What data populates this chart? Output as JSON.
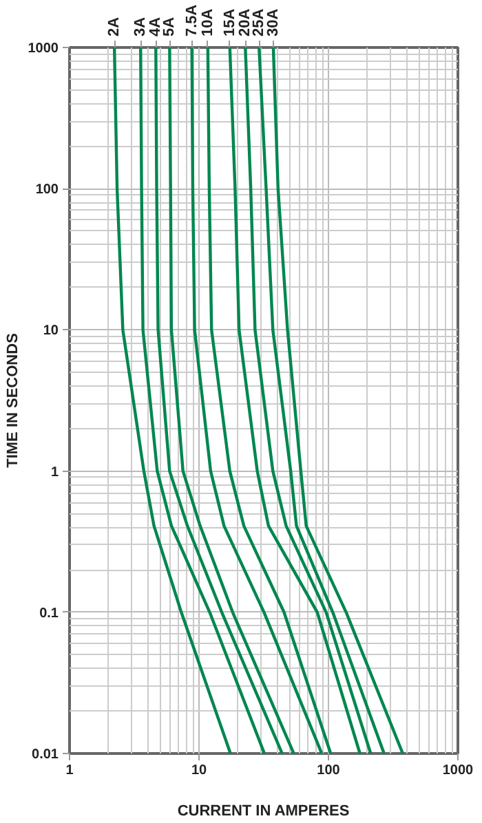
{
  "chart_data": {
    "type": "line",
    "xlabel": "CURRENT IN AMPERES",
    "ylabel": "TIME IN SECONDS",
    "log": "xy",
    "grid": true,
    "xlim": [
      1,
      1000
    ],
    "ylim": [
      0.01,
      1000
    ],
    "xticks": [
      1,
      10,
      100,
      1000
    ],
    "yticks": [
      0.01,
      0.1,
      1,
      10,
      100,
      1000
    ],
    "series": [
      {
        "name": "2A",
        "color": "#00874f",
        "x": [
          2.22,
          2.33,
          2.58,
          3.75,
          4.49,
          7.3,
          17.5
        ],
        "values": [
          1000,
          100,
          10,
          1,
          0.41,
          0.1,
          0.01
        ]
      },
      {
        "name": "3A",
        "color": "#00874f",
        "x": [
          3.54,
          3.6,
          3.69,
          4.76,
          6.12,
          12.1,
          32.0
        ],
        "values": [
          1000,
          100,
          10,
          1,
          0.41,
          0.1,
          0.01
        ]
      },
      {
        "name": "4A",
        "color": "#00874f",
        "x": [
          4.64,
          4.71,
          4.83,
          5.93,
          8.13,
          15.0,
          43.9
        ],
        "values": [
          1000,
          100,
          10,
          1,
          0.41,
          0.1,
          0.01
        ]
      },
      {
        "name": "5A",
        "color": "#00874f",
        "x": [
          5.93,
          6.03,
          6.12,
          7.52,
          10.2,
          18.2,
          54.0
        ],
        "values": [
          1000,
          100,
          10,
          1,
          0.41,
          0.1,
          0.01
        ]
      },
      {
        "name": "7.5A",
        "color": "#00874f",
        "x": [
          8.81,
          8.95,
          9.25,
          12.3,
          15.6,
          31.8,
          88.8
        ],
        "values": [
          1000,
          100,
          10,
          1,
          0.41,
          0.1,
          0.01
        ]
      },
      {
        "name": "10A",
        "color": "#00874f",
        "x": [
          11.7,
          12.0,
          12.5,
          17.3,
          22.2,
          45.4,
          104
        ],
        "values": [
          1000,
          100,
          10,
          1,
          0.41,
          0.1,
          0.01
        ]
      },
      {
        "name": "15A",
        "color": "#00874f",
        "x": [
          17.3,
          19.0,
          20.4,
          28.2,
          34.4,
          82,
          175
        ],
        "values": [
          1000,
          100,
          10,
          1,
          0.41,
          0.1,
          0.01
        ]
      },
      {
        "name": "20A",
        "color": "#00874f",
        "x": [
          22.8,
          25.1,
          27.1,
          37.2,
          47.1,
          96,
          212
        ],
        "values": [
          1000,
          100,
          10,
          1,
          0.41,
          0.1,
          0.01
        ]
      },
      {
        "name": "25A",
        "color": "#00874f",
        "x": [
          29.1,
          33.0,
          37.2,
          51.1,
          56.6,
          108,
          269
        ],
        "values": [
          1000,
          100,
          10,
          1,
          0.41,
          0.1,
          0.01
        ]
      },
      {
        "name": "30A",
        "color": "#00874f",
        "x": [
          37.5,
          40.8,
          48.3,
          61.2,
          67.3,
          137,
          375
        ],
        "values": [
          1000,
          100,
          10,
          1,
          0.41,
          0.1,
          0.01
        ]
      }
    ]
  }
}
